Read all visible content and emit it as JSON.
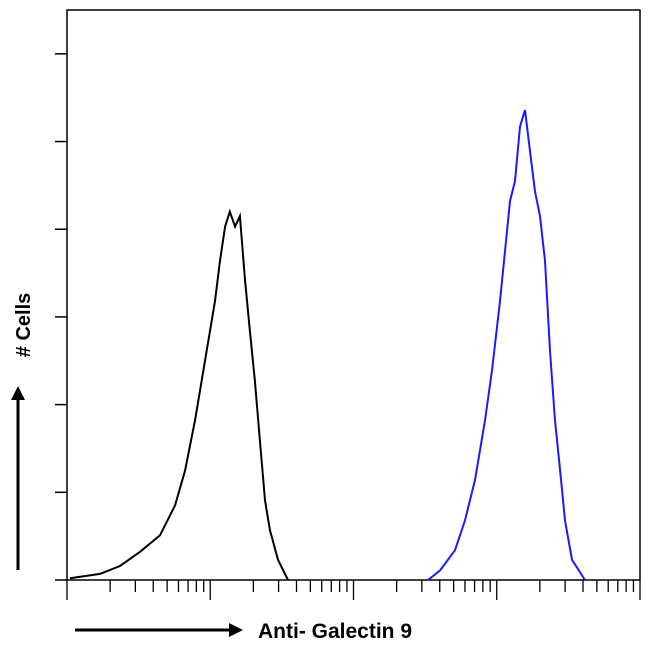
{
  "chart_data": {
    "type": "line",
    "x_label": "Anti- Galectin 9",
    "y_label": "# Cells",
    "xscale": "log",
    "xlim": [
      1,
      10000
    ],
    "ylim": [
      0,
      6.5
    ],
    "xticks": [
      1,
      2,
      3,
      4,
      5,
      6,
      7,
      8,
      9,
      10,
      20,
      30,
      40,
      50,
      60,
      70,
      80,
      90,
      100,
      200,
      300,
      400,
      500,
      600,
      700,
      800,
      900,
      1000,
      2000,
      3000,
      4000,
      5000,
      6000,
      7000,
      8000,
      9000,
      10000
    ],
    "yticks": [
      0,
      1,
      2,
      3,
      4,
      5,
      6
    ],
    "series": [
      {
        "color": "#000000",
        "x": [
          1.05,
          1.7,
          2.34,
          3.23,
          4.46,
          5.67,
          6.67,
          7.83,
          9.19,
          10.8,
          11.7,
          12.7,
          13.7,
          14.9,
          16.1,
          17.5,
          18.9,
          20.5,
          22.2,
          24.1,
          26.1,
          29.7,
          34.9
        ],
        "values": [
          0.02,
          0.07,
          0.16,
          0.32,
          0.51,
          0.85,
          1.25,
          1.82,
          2.5,
          3.18,
          3.64,
          4.03,
          4.2,
          4.03,
          4.15,
          3.41,
          2.84,
          2.27,
          1.59,
          0.91,
          0.57,
          0.23,
          0
        ]
      },
      {
        "color": "#1a1aff",
        "x": [
          331,
          402,
          511,
          600,
          705,
          828,
          926,
          1054,
          1142,
          1237,
          1340,
          1452,
          1574,
          1706,
          1849,
          2004,
          2173,
          2355,
          2552,
          2767,
          2993,
          3350,
          4130
        ],
        "values": [
          0,
          0.11,
          0.34,
          0.68,
          1.14,
          1.82,
          2.39,
          3.18,
          3.75,
          4.32,
          4.55,
          5.17,
          5.36,
          4.89,
          4.43,
          4.15,
          3.64,
          2.61,
          1.82,
          1.25,
          0.68,
          0.23,
          0
        ]
      }
    ]
  }
}
